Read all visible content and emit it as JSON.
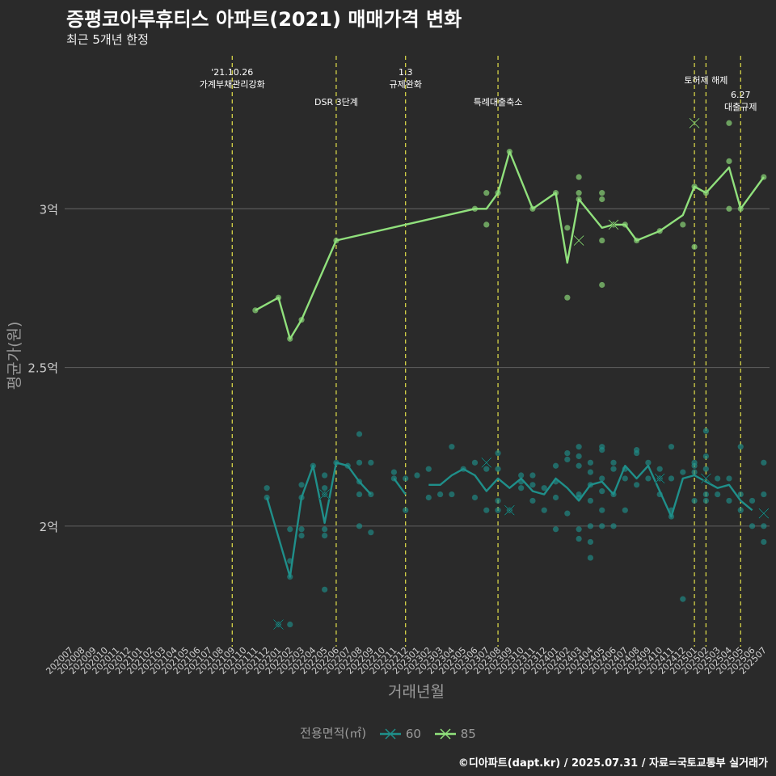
{
  "chart_data": {
    "type": "line",
    "title": "증평코아루휴티스 아파트(2021) 매매가격 변화",
    "subtitle": "최근 5개년 한정",
    "xlabel": "거래년월",
    "ylabel": "평균가(원)",
    "caption": "©디아파트(dapt.kr) / 2025.07.31 / 자료=국토교통부 실거래가",
    "legend_title": "전용면적(㎡)",
    "ylim": [
      1.62,
      3.5
    ],
    "ytick_values": [
      2.0,
      2.5,
      3.0
    ],
    "ytick_labels": [
      "2억",
      "2.5억",
      "3억"
    ],
    "grid": true,
    "legend_position": "bottom",
    "categories": [
      "202007",
      "202008",
      "202009",
      "202010",
      "202011",
      "202012",
      "202101",
      "202102",
      "202103",
      "202104",
      "202105",
      "202106",
      "202107",
      "202108",
      "202109",
      "202110",
      "202111",
      "202112",
      "202201",
      "202202",
      "202203",
      "202204",
      "202205",
      "202206",
      "202207",
      "202208",
      "202209",
      "202210",
      "202211",
      "202212",
      "202301",
      "202302",
      "202303",
      "202304",
      "202305",
      "202306",
      "202307",
      "202308",
      "202309",
      "202310",
      "202311",
      "202312",
      "202401",
      "202402",
      "202403",
      "202404",
      "202405",
      "202406",
      "202407",
      "202408",
      "202409",
      "202410",
      "202411",
      "202412",
      "202501",
      "202502",
      "202503",
      "202504",
      "202505",
      "202506",
      "202507"
    ],
    "events": [
      {
        "x": 15.0,
        "label": "'21.10.26\n가계부채관리강화",
        "tier": "high"
      },
      {
        "x": 24.0,
        "label": "DSR 3단계",
        "tier": "low"
      },
      {
        "x": 30.0,
        "label": "1.3\n규제완화",
        "tier": "high"
      },
      {
        "x": 38.0,
        "label": "특례대출축소",
        "tier": "low"
      },
      {
        "x": 55.0,
        "label": "",
        "tier": "none"
      },
      {
        "x": 56.0,
        "label": "토허제 해제",
        "tier": "mid"
      },
      {
        "x": 59.0,
        "label": "6.27\n대출규제",
        "tier": "low2"
      }
    ],
    "series": [
      {
        "name": "60",
        "color": "#1f8f8a",
        "line": [
          [
            18,
            2.09
          ],
          [
            20,
            1.84
          ],
          [
            21,
            2.09
          ],
          [
            22,
            2.19
          ],
          [
            23,
            2.01
          ],
          [
            24,
            2.2
          ],
          [
            25,
            2.19
          ],
          [
            26,
            2.14
          ],
          [
            27,
            2.1
          ],
          [
            null,
            null
          ],
          [
            29,
            2.15
          ],
          [
            30,
            2.1
          ],
          [
            null,
            null
          ],
          [
            32,
            2.13
          ],
          [
            33,
            2.13
          ],
          [
            34,
            2.16
          ],
          [
            35,
            2.18
          ],
          [
            36,
            2.16
          ],
          [
            37,
            2.11
          ],
          [
            38,
            2.15
          ],
          [
            39,
            2.12
          ],
          [
            40,
            2.15
          ],
          [
            41,
            2.11
          ],
          [
            42,
            2.1
          ],
          [
            43,
            2.15
          ],
          [
            44,
            2.12
          ],
          [
            45,
            2.08
          ],
          [
            46,
            2.13
          ],
          [
            47,
            2.14
          ],
          [
            48,
            2.1
          ],
          [
            49,
            2.19
          ],
          [
            50,
            2.15
          ],
          [
            51,
            2.19
          ],
          [
            52,
            2.11
          ],
          [
            53,
            2.03
          ],
          [
            54,
            2.15
          ],
          [
            55,
            2.16
          ],
          [
            56,
            2.14
          ],
          [
            57,
            2.12
          ],
          [
            58,
            2.13
          ],
          [
            59,
            2.08
          ],
          [
            60,
            2.05
          ]
        ],
        "points": [
          [
            18,
            2.12
          ],
          [
            18,
            2.09
          ],
          [
            19,
            1.69
          ],
          [
            20,
            1.99
          ],
          [
            20,
            1.89
          ],
          [
            20,
            1.84
          ],
          [
            20,
            1.69
          ],
          [
            21,
            2.13
          ],
          [
            21,
            2.09
          ],
          [
            21,
            1.99
          ],
          [
            21,
            1.97
          ],
          [
            22,
            2.19
          ],
          [
            23,
            2.16
          ],
          [
            23,
            2.12
          ],
          [
            23,
            2.1
          ],
          [
            23,
            1.99
          ],
          [
            23,
            1.97
          ],
          [
            23,
            1.8
          ],
          [
            24,
            2.2
          ],
          [
            25,
            2.19
          ],
          [
            26,
            2.29
          ],
          [
            26,
            2.2
          ],
          [
            26,
            2.14
          ],
          [
            26,
            2.1
          ],
          [
            26,
            2.0
          ],
          [
            27,
            2.2
          ],
          [
            27,
            2.1
          ],
          [
            27,
            1.98
          ],
          [
            29,
            2.17
          ],
          [
            29,
            2.15
          ],
          [
            30,
            2.05
          ],
          [
            30,
            2.15
          ],
          [
            31,
            2.16
          ],
          [
            32,
            2.18
          ],
          [
            32,
            2.09
          ],
          [
            33,
            2.1
          ],
          [
            34,
            2.25
          ],
          [
            34,
            2.1
          ],
          [
            35,
            2.18
          ],
          [
            36,
            2.2
          ],
          [
            36,
            2.09
          ],
          [
            37,
            2.18
          ],
          [
            37,
            2.05
          ],
          [
            38,
            2.23
          ],
          [
            38,
            2.18
          ],
          [
            38,
            2.08
          ],
          [
            38,
            2.05
          ],
          [
            39,
            2.05
          ],
          [
            40,
            2.16
          ],
          [
            40,
            2.14
          ],
          [
            40,
            2.12
          ],
          [
            41,
            2.16
          ],
          [
            41,
            2.13
          ],
          [
            41,
            2.08
          ],
          [
            42,
            2.12
          ],
          [
            42,
            2.05
          ],
          [
            43,
            2.19
          ],
          [
            43,
            2.14
          ],
          [
            43,
            2.09
          ],
          [
            43,
            1.99
          ],
          [
            44,
            2.23
          ],
          [
            44,
            2.21
          ],
          [
            44,
            2.04
          ],
          [
            45,
            2.25
          ],
          [
            45,
            2.22
          ],
          [
            45,
            2.19
          ],
          [
            45,
            2.1
          ],
          [
            45,
            2.09
          ],
          [
            45,
            1.99
          ],
          [
            45,
            1.96
          ],
          [
            46,
            2.2
          ],
          [
            46,
            2.17
          ],
          [
            46,
            2.13
          ],
          [
            46,
            2.08
          ],
          [
            46,
            2.0
          ],
          [
            46,
            1.95
          ],
          [
            46,
            1.9
          ],
          [
            47,
            2.25
          ],
          [
            47,
            2.24
          ],
          [
            47,
            2.15
          ],
          [
            47,
            2.11
          ],
          [
            47,
            2.05
          ],
          [
            47,
            2.0
          ],
          [
            48,
            2.2
          ],
          [
            48,
            2.18
          ],
          [
            48,
            2.1
          ],
          [
            48,
            2.0
          ],
          [
            49,
            2.18
          ],
          [
            49,
            2.15
          ],
          [
            49,
            2.05
          ],
          [
            50,
            2.24
          ],
          [
            50,
            2.23
          ],
          [
            50,
            2.13
          ],
          [
            51,
            2.2
          ],
          [
            51,
            2.15
          ],
          [
            52,
            2.18
          ],
          [
            52,
            2.15
          ],
          [
            52,
            2.1
          ],
          [
            53,
            2.25
          ],
          [
            53,
            2.15
          ],
          [
            53,
            2.05
          ],
          [
            53,
            2.03
          ],
          [
            54,
            2.17
          ],
          [
            54,
            1.77
          ],
          [
            55,
            2.2
          ],
          [
            55,
            2.19
          ],
          [
            55,
            2.17
          ],
          [
            55,
            2.08
          ],
          [
            56,
            2.3
          ],
          [
            56,
            2.22
          ],
          [
            56,
            2.18
          ],
          [
            56,
            2.1
          ],
          [
            56,
            2.08
          ],
          [
            57,
            2.15
          ],
          [
            57,
            2.1
          ],
          [
            58,
            2.15
          ],
          [
            58,
            2.08
          ],
          [
            59,
            2.25
          ],
          [
            59,
            2.1
          ],
          [
            59,
            2.05
          ],
          [
            60,
            2.08
          ],
          [
            60,
            2.0
          ],
          [
            61,
            2.2
          ],
          [
            61,
            2.1
          ],
          [
            61,
            2.0
          ],
          [
            61,
            1.95
          ]
        ],
        "x_marks": [
          [
            19,
            1.69
          ],
          [
            23,
            2.1
          ],
          [
            37,
            2.2
          ],
          [
            39,
            2.05
          ],
          [
            52,
            2.15
          ],
          [
            56,
            2.15
          ],
          [
            61,
            2.04
          ]
        ]
      },
      {
        "name": "85",
        "color": "#90e07c",
        "line": [
          [
            17,
            2.68
          ],
          [
            19,
            2.72
          ],
          [
            20,
            2.59
          ],
          [
            21,
            2.65
          ],
          [
            24,
            2.9
          ],
          [
            36,
            3.0
          ],
          [
            37,
            3.0
          ],
          [
            38,
            3.05
          ],
          [
            39,
            3.18
          ],
          [
            41,
            3.0
          ],
          [
            43,
            3.05
          ],
          [
            44,
            2.83
          ],
          [
            45,
            3.03
          ],
          [
            47,
            2.94
          ],
          [
            48,
            2.95
          ],
          [
            49,
            2.95
          ],
          [
            50,
            2.9
          ],
          [
            52,
            2.93
          ],
          [
            54,
            2.98
          ],
          [
            55,
            3.07
          ],
          [
            56,
            3.05
          ],
          [
            58,
            3.13
          ],
          [
            59,
            3.0
          ],
          [
            61,
            3.1
          ]
        ],
        "points": [
          [
            17,
            2.68
          ],
          [
            19,
            2.72
          ],
          [
            20,
            2.59
          ],
          [
            21,
            2.65
          ],
          [
            24,
            2.9
          ],
          [
            36,
            3.0
          ],
          [
            37,
            3.05
          ],
          [
            37,
            2.95
          ],
          [
            38,
            3.05
          ],
          [
            39,
            3.18
          ],
          [
            41,
            3.0
          ],
          [
            43,
            3.05
          ],
          [
            44,
            2.94
          ],
          [
            44,
            2.72
          ],
          [
            45,
            3.1
          ],
          [
            45,
            3.05
          ],
          [
            45,
            3.03
          ],
          [
            47,
            3.05
          ],
          [
            47,
            3.03
          ],
          [
            47,
            2.9
          ],
          [
            47,
            2.76
          ],
          [
            48,
            2.95
          ],
          [
            49,
            2.95
          ],
          [
            50,
            2.9
          ],
          [
            52,
            2.93
          ],
          [
            54,
            2.95
          ],
          [
            55,
            2.88
          ],
          [
            55,
            3.07
          ],
          [
            56,
            3.05
          ],
          [
            58,
            3.27
          ],
          [
            58,
            3.15
          ],
          [
            58,
            3.0
          ],
          [
            59,
            3.0
          ],
          [
            61,
            3.1
          ]
        ],
        "x_marks": [
          [
            45,
            2.9
          ],
          [
            48,
            2.95
          ],
          [
            55,
            3.27
          ]
        ]
      }
    ]
  }
}
